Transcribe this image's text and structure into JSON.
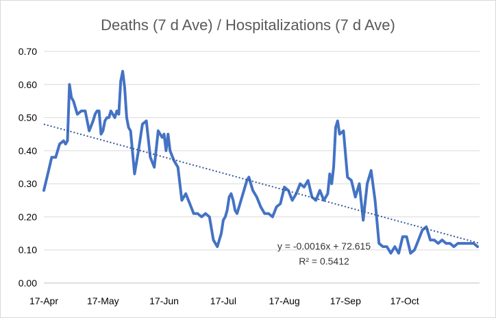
{
  "chart_data": {
    "type": "line",
    "title": "Deaths (7 d Ave) / Hospitalizations (7 d Ave)",
    "xlabel": "",
    "ylabel": "",
    "x_tick_labels": [
      "17-Apr",
      "17-May",
      "17-Jun",
      "17-Jul",
      "17-Aug",
      "17-Sep",
      "17-Oct"
    ],
    "x_tick_day_index": [
      0,
      30,
      61,
      91,
      122,
      153,
      183
    ],
    "x_range_days": [
      0,
      221
    ],
    "ylim": [
      0,
      0.7
    ],
    "y_ticks": [
      0,
      0.1,
      0.2,
      0.3,
      0.4,
      0.5,
      0.6,
      0.7
    ],
    "y_tick_labels": [
      "0.00",
      "0.10",
      "0.20",
      "0.30",
      "0.40",
      "0.50",
      "0.60",
      "0.70"
    ],
    "grid": true,
    "series": [
      {
        "name": "Deaths (7 d Ave) / Hospitalizations (7 d Ave)",
        "color": "#4472C4",
        "x": [
          0,
          2,
          4,
          6,
          8,
          10,
          11,
          12,
          13,
          14,
          15,
          17,
          19,
          21,
          23,
          25,
          26,
          27,
          28,
          29,
          30,
          31,
          32,
          33,
          34,
          36,
          37,
          38,
          39,
          40,
          41,
          42,
          43,
          44,
          46,
          48,
          50,
          52,
          54,
          56,
          58,
          60,
          61,
          62,
          63,
          64,
          66,
          68,
          70,
          72,
          74,
          76,
          78,
          80,
          82,
          84,
          86,
          88,
          90,
          91,
          92,
          93,
          94,
          95,
          96,
          97,
          98,
          100,
          102,
          103,
          104,
          106,
          108,
          110,
          112,
          114,
          116,
          118,
          120,
          122,
          124,
          126,
          128,
          130,
          132,
          134,
          136,
          138,
          140,
          142,
          144,
          145,
          146,
          147,
          148,
          149,
          150,
          152,
          154,
          156,
          158,
          160,
          162,
          164,
          166,
          168,
          170,
          172,
          174,
          176,
          178,
          180,
          182,
          184,
          186,
          188,
          190,
          192,
          194,
          196,
          198,
          200,
          202,
          204,
          206,
          208,
          210,
          212,
          214,
          216,
          218,
          220
        ],
        "values": [
          0.28,
          0.33,
          0.38,
          0.38,
          0.42,
          0.43,
          0.42,
          0.43,
          0.6,
          0.56,
          0.55,
          0.51,
          0.52,
          0.52,
          0.46,
          0.49,
          0.51,
          0.52,
          0.52,
          0.45,
          0.46,
          0.49,
          0.5,
          0.5,
          0.52,
          0.5,
          0.52,
          0.51,
          0.61,
          0.64,
          0.59,
          0.5,
          0.47,
          0.46,
          0.33,
          0.4,
          0.48,
          0.49,
          0.38,
          0.35,
          0.46,
          0.44,
          0.45,
          0.4,
          0.45,
          0.4,
          0.37,
          0.35,
          0.25,
          0.27,
          0.24,
          0.21,
          0.21,
          0.2,
          0.21,
          0.2,
          0.13,
          0.11,
          0.15,
          0.19,
          0.2,
          0.22,
          0.26,
          0.27,
          0.25,
          0.22,
          0.21,
          0.25,
          0.29,
          0.31,
          0.32,
          0.28,
          0.26,
          0.23,
          0.21,
          0.21,
          0.2,
          0.23,
          0.24,
          0.29,
          0.28,
          0.25,
          0.27,
          0.3,
          0.29,
          0.31,
          0.26,
          0.25,
          0.28,
          0.25,
          0.27,
          0.33,
          0.3,
          0.35,
          0.47,
          0.49,
          0.45,
          0.46,
          0.32,
          0.31,
          0.26,
          0.3,
          0.19,
          0.3,
          0.34,
          0.25,
          0.12,
          0.11,
          0.11,
          0.09,
          0.11,
          0.09,
          0.14,
          0.14,
          0.09,
          0.1,
          0.13,
          0.16,
          0.17,
          0.13,
          0.13,
          0.12,
          0.13,
          0.12,
          0.12,
          0.11,
          0.12,
          0.12,
          0.12,
          0.12,
          0.12,
          0.11
        ],
        "trendline": {
          "type": "linear",
          "color": "#2F5597",
          "start_value": 0.48,
          "end_value": 0.12
        }
      }
    ],
    "annotations": {
      "equation": "y = -0.0016x + 72.615",
      "r_squared": "R² = 0.5412"
    }
  }
}
